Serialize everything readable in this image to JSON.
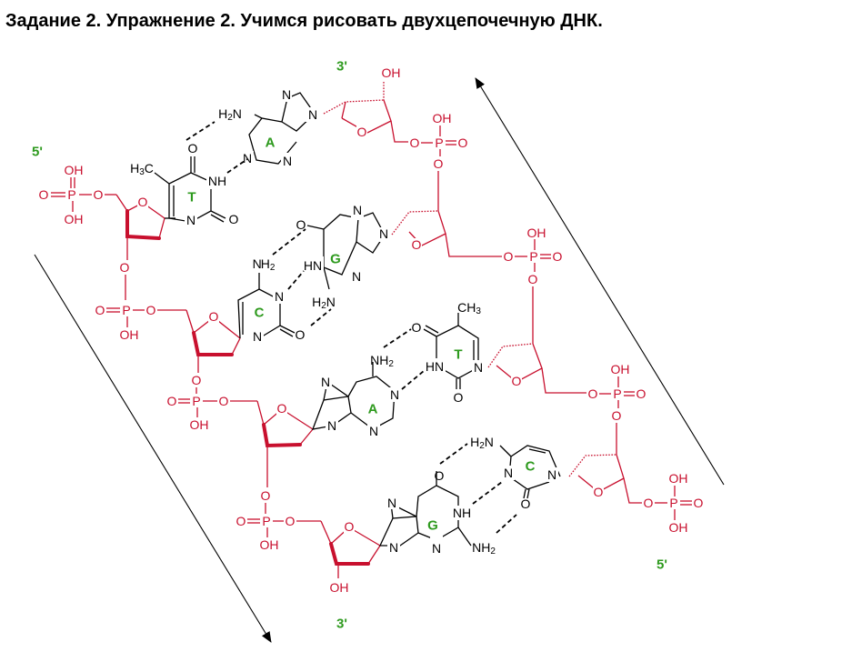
{
  "title": "Задание 2. Упражнение 2. Учимся рисовать двухцепочечную ДНК.",
  "colors": {
    "backbone": "#c8102e",
    "base_label": "#2e9a1e",
    "bonds": "#000000"
  },
  "strand_ends": {
    "left_top": "5'",
    "left_bottom": "3'",
    "right_top": "3'",
    "right_bottom": "5'"
  },
  "left_bases": [
    "T",
    "C",
    "A",
    "G"
  ],
  "right_bases": [
    "A",
    "G",
    "T",
    "C"
  ],
  "atoms": {
    "oh": "OH",
    "o": "O",
    "p": "P",
    "n": "N",
    "nh": "NH",
    "hn": "HN",
    "nh2": "NH",
    "h2n": "H",
    "n_sub": "N",
    "sub2": "2",
    "ch3": "CH",
    "h3c": "H",
    "c_sub": "C",
    "sub3": "3"
  }
}
